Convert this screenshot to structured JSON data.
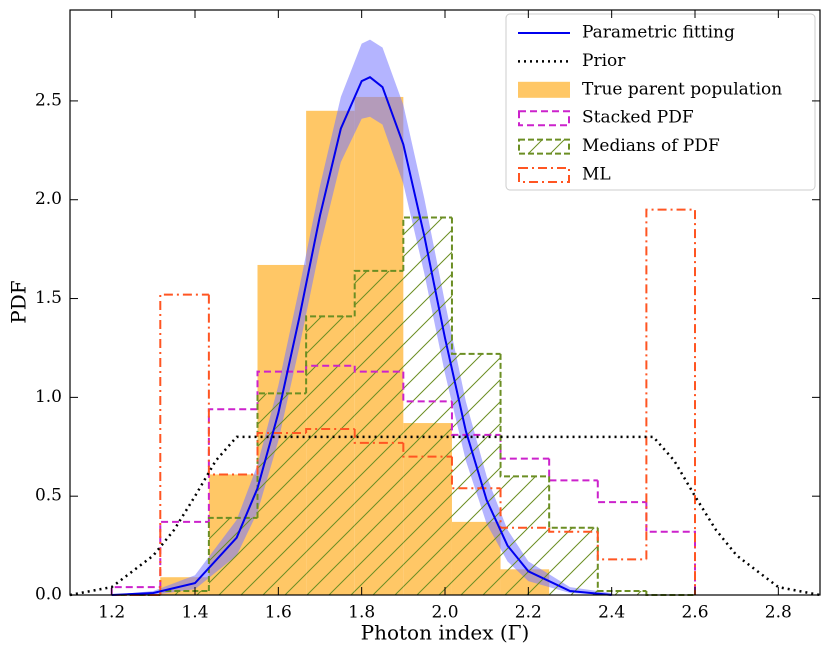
{
  "chart_data": {
    "type": "histogram",
    "xlabel": "Photon index (Γ)",
    "ylabel": "PDF",
    "xlim": [
      1.1,
      2.9
    ],
    "ylim": [
      0,
      2.96
    ],
    "xticks": [
      1.2,
      1.4,
      1.6,
      1.8,
      {
        "value": 2,
        "label": "2.0"
      },
      2.2,
      2.4,
      2.6,
      2.8
    ],
    "yticks": [
      {
        "value": 0,
        "label": "0.0"
      },
      0.5,
      {
        "value": 1,
        "label": "1.0"
      },
      1.5,
      {
        "value": 2,
        "label": "2.0"
      },
      2.5
    ],
    "bins": [
      1.2,
      1.3167,
      1.4333,
      1.55,
      1.6667,
      1.7833,
      1.9,
      2.0167,
      2.1333,
      2.25,
      2.3667,
      2.4833,
      2.6
    ],
    "curves": [
      {
        "name": "Parametric fitting",
        "color": "#0000ee",
        "band_color": "#7777ff",
        "x": [
          1.2,
          1.3,
          1.4,
          1.5,
          1.55,
          1.6,
          1.65,
          1.7,
          1.75,
          1.8,
          1.82,
          1.85,
          1.9,
          1.95,
          2.0,
          2.05,
          2.1,
          2.15,
          2.2,
          2.3,
          2.4
        ],
        "values": [
          0.0,
          0.01,
          0.06,
          0.29,
          0.54,
          0.92,
          1.4,
          1.92,
          2.36,
          2.6,
          2.62,
          2.57,
          2.28,
          1.82,
          1.3,
          0.83,
          0.48,
          0.25,
          0.12,
          0.02,
          0.0
        ],
        "upper": [
          0.0,
          0.02,
          0.1,
          0.38,
          0.66,
          1.06,
          1.55,
          2.07,
          2.52,
          2.79,
          2.81,
          2.77,
          2.48,
          2.01,
          1.48,
          0.98,
          0.6,
          0.33,
          0.17,
          0.04,
          0.01
        ],
        "lower": [
          0.0,
          0.0,
          0.03,
          0.2,
          0.42,
          0.78,
          1.25,
          1.76,
          2.19,
          2.41,
          2.42,
          2.38,
          2.08,
          1.63,
          1.12,
          0.68,
          0.36,
          0.17,
          0.07,
          0.01,
          0.0
        ]
      },
      {
        "name": "Prior",
        "color": "#000000",
        "style": "dotted",
        "x": [
          1.1,
          1.2,
          1.3,
          1.35,
          1.4,
          1.45,
          1.5,
          2.5,
          2.55,
          2.6,
          2.65,
          2.7,
          2.8,
          2.9
        ],
        "values": [
          0.0,
          0.04,
          0.2,
          0.33,
          0.5,
          0.68,
          0.8,
          0.8,
          0.68,
          0.5,
          0.33,
          0.2,
          0.04,
          0.0
        ]
      }
    ],
    "series": [
      {
        "name": "True parent population",
        "color": "#ffc766",
        "style": "filled",
        "values": [
          0,
          0.09,
          0.61,
          1.67,
          2.45,
          2.52,
          0.87,
          0.37,
          0.13,
          0,
          0,
          0
        ]
      },
      {
        "name": "Stacked PDF",
        "color": "#cc22cc",
        "style": "dashed",
        "values": [
          0.04,
          0.37,
          0.94,
          1.13,
          1.16,
          1.13,
          0.98,
          0.81,
          0.69,
          0.58,
          0.47,
          0.32
        ]
      },
      {
        "name": "Medians of PDF",
        "color": "#6b8e23",
        "style": "hatched",
        "values": [
          0,
          0.02,
          0.39,
          1.02,
          1.41,
          1.64,
          1.91,
          1.22,
          0.6,
          0.34,
          0.02,
          0
        ]
      },
      {
        "name": "ML",
        "color": "#ff5522",
        "style": "dashdot",
        "values": [
          0,
          1.52,
          0.61,
          0.82,
          0.84,
          0.77,
          0.7,
          0.54,
          0.34,
          0.32,
          0.18,
          1.95
        ]
      }
    ]
  }
}
